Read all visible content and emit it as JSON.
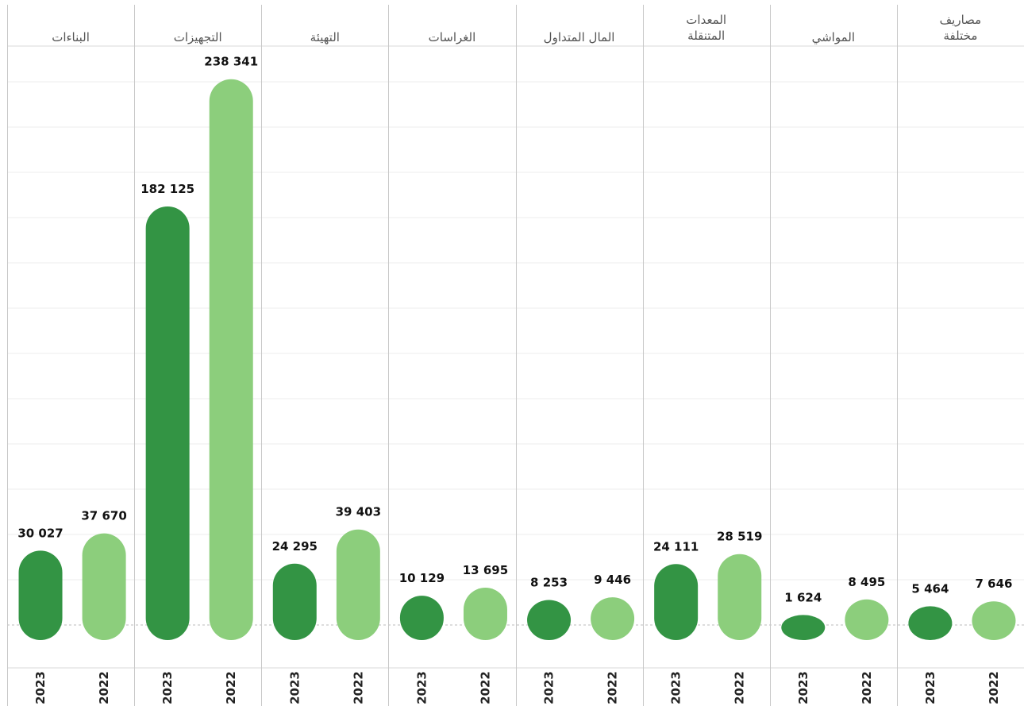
{
  "chart_data": {
    "type": "bar",
    "categories": [
      {
        "lines": [
          "البناءات"
        ]
      },
      {
        "lines": [
          "التجهيزات"
        ]
      },
      {
        "lines": [
          "التهيئة"
        ]
      },
      {
        "lines": [
          "الغراسات"
        ]
      },
      {
        "lines": [
          "المال المتداول"
        ]
      },
      {
        "lines": [
          "المعدات",
          "المتنقلة"
        ]
      },
      {
        "lines": [
          "المواشي"
        ]
      },
      {
        "lines": [
          "مصاريف",
          "مختلفة"
        ]
      }
    ],
    "years": [
      "2023",
      "2022"
    ],
    "values_2023": [
      30027,
      182125,
      24295,
      10129,
      8253,
      24111,
      1624,
      5464
    ],
    "values_2022": [
      37670,
      238341,
      39403,
      13695,
      9446,
      28519,
      8495,
      7646
    ],
    "labels_2023": [
      "30 027",
      "182 125",
      "24 295",
      "10 129",
      "8 253",
      "24 111",
      "1 624",
      "5 464"
    ],
    "labels_2022": [
      "37 670",
      "238 341",
      "39 403",
      "13 695",
      "9 446",
      "28 519",
      "8 495",
      "7 646"
    ],
    "ylim": [
      0,
      250000
    ],
    "grid": true,
    "legend": "none",
    "colors": {
      "2023": "#339444",
      "2022": "#8cce7c",
      "grid": "#ececec",
      "divider": "#c8c8c8",
      "baseline": "#bbbbbb"
    }
  }
}
